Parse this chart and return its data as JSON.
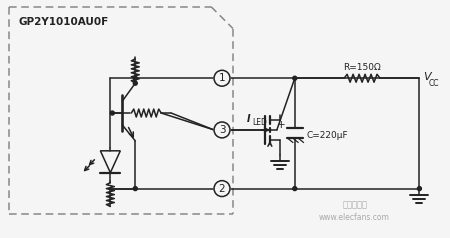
{
  "bg_color": "#f5f5f5",
  "line_color": "#222222",
  "label_GP2Y": "GP2Y1010AU0F",
  "label_R": "R=150Ω",
  "label_C": "C=220μF",
  "label_Vcc": "V",
  "label_Vcc_sub": "CC",
  "label_ILED": "I",
  "label_ILED_sub": "LED",
  "node1_label": "1",
  "node2_label": "2",
  "node3_label": "3",
  "watermark": "电子发烧网",
  "watermark2": "www.elecfans.com"
}
